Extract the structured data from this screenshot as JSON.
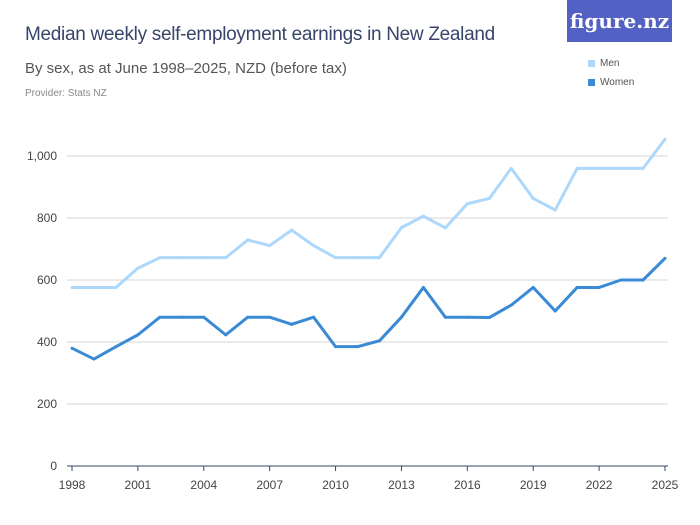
{
  "header": {
    "title": "Median weekly self-employment earnings in New Zealand",
    "subtitle": "By sex, as at June 1998–2025, NZD (before tax)",
    "provider": "Provider: Stats NZ",
    "logo": "figure.nz"
  },
  "chart_data": {
    "type": "line",
    "title": "Median weekly self-employment earnings in New Zealand",
    "subtitle": "By sex, as at June 1998–2025, NZD (before tax)",
    "xlabel": "",
    "ylabel": "",
    "ylim": [
      0,
      1000
    ],
    "yticks": [
      0,
      200,
      400,
      600,
      800,
      1000
    ],
    "ytick_labels": [
      "0",
      "200",
      "400",
      "600",
      "800",
      "1,000"
    ],
    "xticks": [
      1998,
      2001,
      2004,
      2007,
      2010,
      2013,
      2016,
      2019,
      2022,
      2025
    ],
    "xtick_labels": [
      "1998",
      "2001",
      "2004",
      "2007",
      "2010",
      "2013",
      "2016",
      "2019",
      "2022",
      "2025"
    ],
    "grid": true,
    "legend": "top-right",
    "x": [
      1998,
      1999,
      2000,
      2001,
      2002,
      2003,
      2004,
      2005,
      2006,
      2007,
      2008,
      2009,
      2010,
      2011,
      2012,
      2013,
      2014,
      2015,
      2016,
      2017,
      2018,
      2019,
      2020,
      2021,
      2022,
      2023,
      2024,
      2025
    ],
    "series": [
      {
        "name": "Men",
        "color": "#add8fb",
        "values": [
          576,
          576,
          576,
          638,
          672,
          672,
          672,
          672,
          729,
          711,
          761,
          711,
          672,
          672,
          672,
          769,
          806,
          768,
          846,
          863,
          960,
          863,
          826,
          960,
          960,
          960,
          960,
          1054
        ]
      },
      {
        "name": "Women",
        "color": "#3a8ad6",
        "values": [
          380,
          345,
          385,
          423,
          480,
          480,
          480,
          423,
          480,
          480,
          457,
          480,
          385,
          385,
          404,
          480,
          576,
          480,
          480,
          479,
          519,
          576,
          500,
          576,
          576,
          600,
          600,
          670
        ]
      }
    ]
  }
}
